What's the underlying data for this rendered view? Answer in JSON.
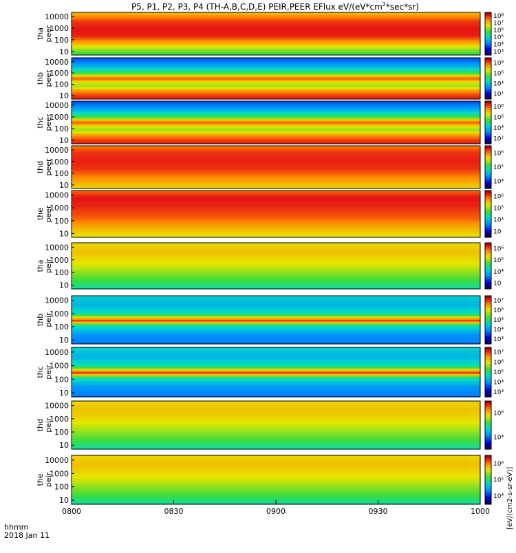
{
  "title": "P5, P1, P2, P3, P4 (TH-A,B,C,D,E) PEIR,PEER EFlux eV/(eV*cm",
  "title_sup": "2",
  "title_tail": "*sec*sr)",
  "footer": {
    "line1": "hhmm",
    "line2": "2018 Jan 11"
  },
  "colorbar_unit_label": "[eV/(cm2-s-sr-eV)]",
  "chart_data": {
    "type": "heatmap",
    "x_tick_labels": [
      "0800",
      "0830",
      "0900",
      "0930",
      "1000"
    ],
    "x_range": [
      "0800",
      "1000"
    ],
    "y_scale": "log",
    "panels": [
      {
        "l1": "tha",
        "l2": "peer",
        "yt": [
          "10",
          "100",
          "1000",
          "10000"
        ],
        "cb": [
          "10³",
          "10⁴",
          "10⁵",
          "10⁶",
          "10⁷",
          "10⁸"
        ],
        "p": "a"
      },
      {
        "l1": "thb",
        "l2": "peer",
        "yt": [
          "10",
          "100",
          "1000",
          "10000"
        ],
        "cb": [
          "10²",
          "10⁴",
          "10⁶",
          "10⁸"
        ],
        "p": "b"
      },
      {
        "l1": "thc",
        "l2": "peer",
        "yt": [
          "10",
          "100",
          "1000",
          "10000"
        ],
        "cb": [
          "10²",
          "10⁴",
          "10⁶",
          "10⁸"
        ],
        "p": "b"
      },
      {
        "l1": "thd",
        "l2": "peer",
        "yt": [
          "10",
          "100",
          "1000",
          "10000"
        ],
        "cb": [
          "10⁴",
          "10⁵",
          "10⁶"
        ],
        "p": "d"
      },
      {
        "l1": "the",
        "l2": "peer",
        "yt": [
          "10",
          "100",
          "1000",
          "10000"
        ],
        "cb": [
          "10⁳",
          "10⁴",
          "10⁵",
          "10⁶"
        ],
        "p": "e"
      },
      {
        "l1": "tha",
        "l2": "peir",
        "yt": [
          "10",
          "100",
          "1000",
          "10000"
        ],
        "cb": [
          "10⁳",
          "10⁴",
          "10⁵",
          "10⁶"
        ],
        "p": "i"
      },
      {
        "l1": "thb",
        "l2": "peir",
        "yt": [
          "10",
          "100",
          "1000",
          "10000"
        ],
        "cb": [
          "10³",
          "10⁴",
          "10⁵",
          "10⁶",
          "10⁷"
        ],
        "p": "b2"
      },
      {
        "l1": "thc",
        "l2": "peir",
        "yt": [
          "10",
          "100",
          "1000",
          "10000"
        ],
        "cb": [
          "10³",
          "10⁴",
          "10⁵",
          "10⁶",
          "10⁷"
        ],
        "p": "b2"
      },
      {
        "l1": "thd",
        "l2": "peir",
        "yt": [
          "10",
          "100",
          "1000",
          "10000"
        ],
        "cb": [
          "10⁴",
          "10⁶"
        ],
        "p": "i"
      },
      {
        "l1": "the",
        "l2": "peir",
        "yt": [
          "10",
          "100",
          "1000",
          "10000"
        ],
        "cb": [
          "10⁴",
          "10⁵",
          "10⁶"
        ],
        "p": "i"
      }
    ]
  }
}
